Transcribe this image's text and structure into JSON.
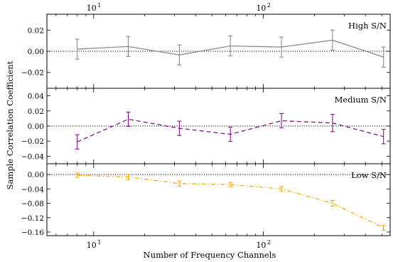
{
  "chart_data": {
    "type": "line",
    "xlabel": "Number of Frequency Channels",
    "ylabel": "Sample Correlation Coefficient",
    "xscale": "log",
    "xlim": [
      5.3,
      560
    ],
    "x_major_ticks": [
      {
        "value": 10,
        "base": "10",
        "exp": "1"
      },
      {
        "value": 100,
        "base": "10",
        "exp": "2"
      }
    ],
    "panels": [
      {
        "name": "high",
        "label": "High S/N",
        "ylim": [
          -0.035,
          0.035
        ],
        "yticks": [
          0.02,
          0.0,
          -0.02
        ],
        "ytick_labels": [
          "0.02",
          "0.00",
          "−0.02"
        ],
        "series": [
          {
            "color": "#808080",
            "linestyle": "solid",
            "x": [
              8,
              16,
              32,
              64,
              128,
              256,
              512
            ],
            "y": [
              0.002,
              0.0045,
              -0.0035,
              0.005,
              0.004,
              0.0105,
              -0.0055
            ],
            "err": [
              0.0095,
              0.0095,
              0.0095,
              0.0095,
              0.0095,
              0.0095,
              0.0095
            ]
          }
        ]
      },
      {
        "name": "medium",
        "label": "Medium S/N",
        "ylim": [
          -0.05,
          0.05
        ],
        "yticks": [
          0.04,
          0.02,
          0.0,
          -0.02,
          -0.04
        ],
        "ytick_labels": [
          "0.04",
          "0.02",
          "0.00",
          "−0.02",
          "−0.04"
        ],
        "series": [
          {
            "color": "#800080",
            "linestyle": "dashed",
            "x": [
              8,
              16,
              32,
              64,
              128,
              256,
              512
            ],
            "y": [
              -0.021,
              0.009,
              -0.003,
              -0.011,
              0.007,
              0.004,
              -0.014
            ],
            "err": [
              0.0095,
              0.0095,
              0.0095,
              0.0095,
              0.0095,
              0.0115,
              0.0095
            ]
          }
        ]
      },
      {
        "name": "low",
        "label": "Low S/N",
        "ylim": [
          -0.17,
          0.03
        ],
        "yticks": [
          0.0,
          -0.04,
          -0.08,
          -0.12,
          -0.16
        ],
        "ytick_labels": [
          "0.00",
          "−0.04",
          "−0.08",
          "−0.12",
          "−0.16"
        ],
        "series": [
          {
            "color": "#ffa500",
            "linestyle": "dashdot",
            "x": [
              8,
              16,
              32,
              64,
              128,
              256,
              512
            ],
            "y": [
              -0.002,
              -0.007,
              -0.025,
              -0.028,
              -0.04,
              -0.08,
              -0.148
            ],
            "err": [
              0.006,
              0.007,
              0.007,
              0.006,
              0.007,
              0.008,
              0.007
            ]
          }
        ]
      }
    ]
  }
}
